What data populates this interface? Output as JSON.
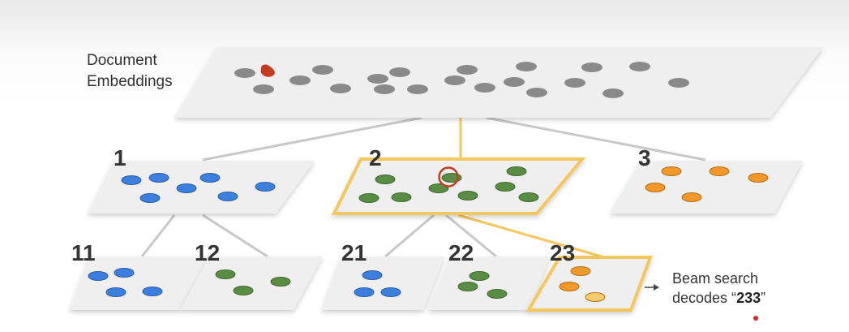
{
  "root": {
    "label_line1": "Document",
    "label_line2": "Embeddings"
  },
  "clusters": [
    {
      "id": "1",
      "label": "1",
      "color": "#3d7fdc"
    },
    {
      "id": "2",
      "label": "2",
      "color": "#5a8c45",
      "highlighted": true
    },
    {
      "id": "3",
      "label": "3",
      "color": "#f0982a"
    }
  ],
  "subclusters": [
    {
      "id": "11",
      "label": "11",
      "parent": "1"
    },
    {
      "id": "12",
      "label": "12",
      "parent": "1"
    },
    {
      "id": "21",
      "label": "21",
      "parent": "2"
    },
    {
      "id": "22",
      "label": "22",
      "parent": "2"
    },
    {
      "id": "23",
      "label": "23",
      "parent": "2",
      "highlighted": true
    }
  ],
  "result": {
    "line1": "Beam search",
    "line2_prefix": "decodes “",
    "code": "233",
    "line2_suffix": "”"
  },
  "colors": {
    "blue": "#3d7fdc",
    "green": "#5a8c45",
    "orange": "#f0982a",
    "light_orange": "#f5cd6e",
    "gray": "#8a8a8a",
    "red": "#c73a22",
    "highlight": "#f5c75e",
    "plane": "#efefef",
    "link": "#c8c8c8"
  }
}
